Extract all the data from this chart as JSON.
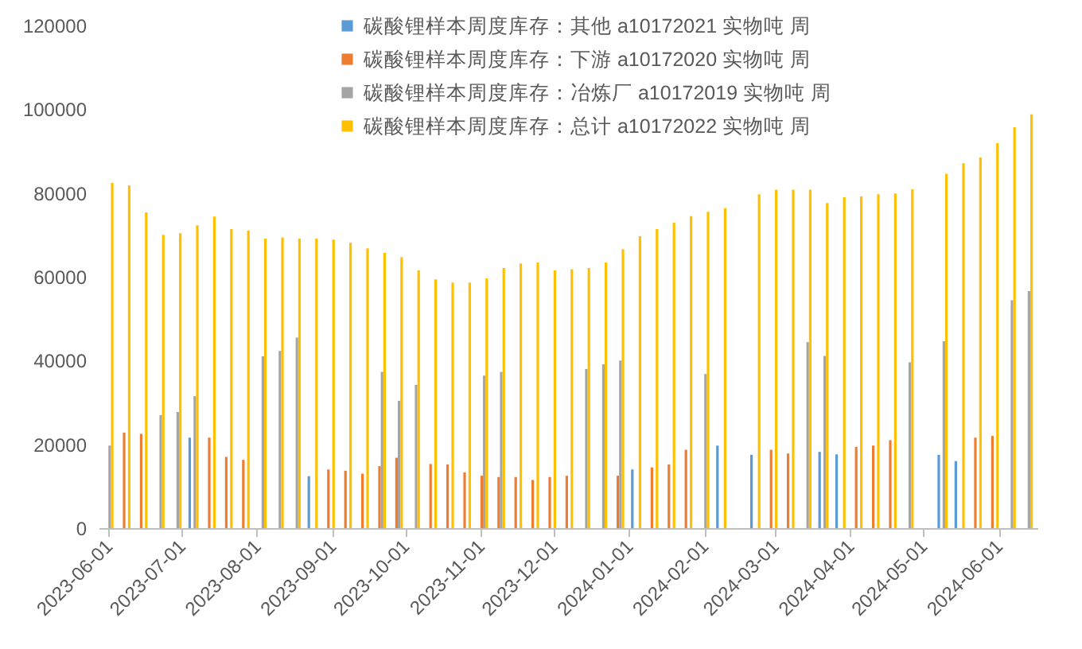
{
  "chart_data": {
    "type": "bar",
    "legend": "top",
    "grid": false,
    "x": [
      "2023-06-01",
      "2023-06-08",
      "2023-06-15",
      "2023-06-22",
      "2023-06-29",
      "2023-07-06",
      "2023-07-13",
      "2023-07-20",
      "2023-07-27",
      "2023-08-03",
      "2023-08-10",
      "2023-08-17",
      "2023-08-24",
      "2023-08-31",
      "2023-09-07",
      "2023-09-14",
      "2023-09-21",
      "2023-09-28",
      "2023-10-05",
      "2023-10-12",
      "2023-10-19",
      "2023-10-26",
      "2023-11-02",
      "2023-11-09",
      "2023-11-16",
      "2023-11-23",
      "2023-11-30",
      "2023-12-07",
      "2023-12-14",
      "2023-12-21",
      "2023-12-28",
      "2024-01-04",
      "2024-01-11",
      "2024-01-18",
      "2024-01-25",
      "2024-02-01",
      "2024-02-08",
      "2024-02-15",
      "2024-02-22",
      "2024-02-29",
      "2024-03-07",
      "2024-03-14",
      "2024-03-21",
      "2024-03-28",
      "2024-04-04",
      "2024-04-11",
      "2024-04-18",
      "2024-04-25",
      "2024-05-02",
      "2024-05-09",
      "2024-05-16",
      "2024-05-23",
      "2024-05-30",
      "2024-06-06",
      "2024-06-13"
    ],
    "xlim": [
      "2023-05-28",
      "2024-06-17"
    ],
    "xticks": [
      "2023-06-01",
      "2023-07-01",
      "2023-08-01",
      "2023-09-01",
      "2023-10-01",
      "2023-11-01",
      "2023-12-01",
      "2024-01-01",
      "2024-02-01",
      "2024-03-01",
      "2024-04-01",
      "2024-05-01",
      "2024-06-01"
    ],
    "ylim": [
      0,
      120000
    ],
    "yticks": [
      0,
      20000,
      40000,
      60000,
      80000,
      100000,
      120000
    ],
    "series": [
      {
        "name": "碳酸锂样本周度库存：其他 a10172021 实物吨 周",
        "color": "#5b9bd5",
        "values": [
          null,
          null,
          null,
          null,
          null,
          21600,
          null,
          null,
          null,
          null,
          null,
          null,
          12400,
          null,
          null,
          null,
          null,
          null,
          null,
          null,
          null,
          null,
          null,
          null,
          null,
          null,
          null,
          null,
          null,
          null,
          null,
          14000,
          null,
          null,
          null,
          null,
          19700,
          null,
          17500,
          null,
          null,
          null,
          18200,
          17600,
          null,
          null,
          null,
          null,
          null,
          17500,
          16000,
          null,
          null,
          null,
          null
        ]
      },
      {
        "name": "碳酸锂样本周度库存：下游 a10172020 实物吨 周",
        "color": "#ed7d31",
        "values": [
          null,
          22800,
          22500,
          null,
          null,
          null,
          21600,
          17000,
          16300,
          null,
          null,
          null,
          null,
          14000,
          13700,
          13000,
          14800,
          16800,
          null,
          15300,
          15200,
          13300,
          12500,
          12200,
          12200,
          11500,
          12200,
          12500,
          null,
          null,
          12500,
          null,
          14500,
          15200,
          18700,
          null,
          null,
          null,
          null,
          18700,
          17800,
          null,
          null,
          null,
          19400,
          19700,
          21000,
          null,
          null,
          null,
          null,
          21600,
          22000,
          null,
          null
        ]
      },
      {
        "name": "碳酸锂样本周度库存：冶炼厂 a10172019 实物吨 周",
        "color": "#a5a5a5",
        "values": [
          19700,
          null,
          null,
          27000,
          27700,
          31500,
          null,
          null,
          null,
          41000,
          42300,
          45500,
          null,
          null,
          null,
          null,
          37300,
          30400,
          34200,
          null,
          null,
          null,
          36400,
          37300,
          null,
          null,
          null,
          null,
          38000,
          39100,
          40000,
          null,
          null,
          null,
          null,
          36800,
          null,
          null,
          null,
          null,
          null,
          44400,
          41100,
          null,
          null,
          null,
          null,
          39600,
          null,
          44600,
          null,
          null,
          null,
          54400,
          56600
        ]
      },
      {
        "name": "碳酸锂样本周度库存：总计 a10172022 实物吨 周",
        "color": "#ffc000",
        "values": [
          82400,
          81800,
          75400,
          70000,
          70400,
          72300,
          74400,
          71400,
          71000,
          69100,
          69400,
          69100,
          69100,
          68900,
          68100,
          66800,
          65700,
          64700,
          61500,
          59400,
          58600,
          58600,
          59600,
          62100,
          63200,
          63400,
          61500,
          61800,
          62100,
          63400,
          66600,
          69700,
          71400,
          72900,
          74500,
          75500,
          76400,
          null,
          79700,
          80800,
          80800,
          80800,
          77600,
          79000,
          79200,
          79700,
          79900,
          80900,
          null,
          84600,
          87100,
          88500,
          91900,
          95700,
          98800
        ]
      }
    ]
  }
}
